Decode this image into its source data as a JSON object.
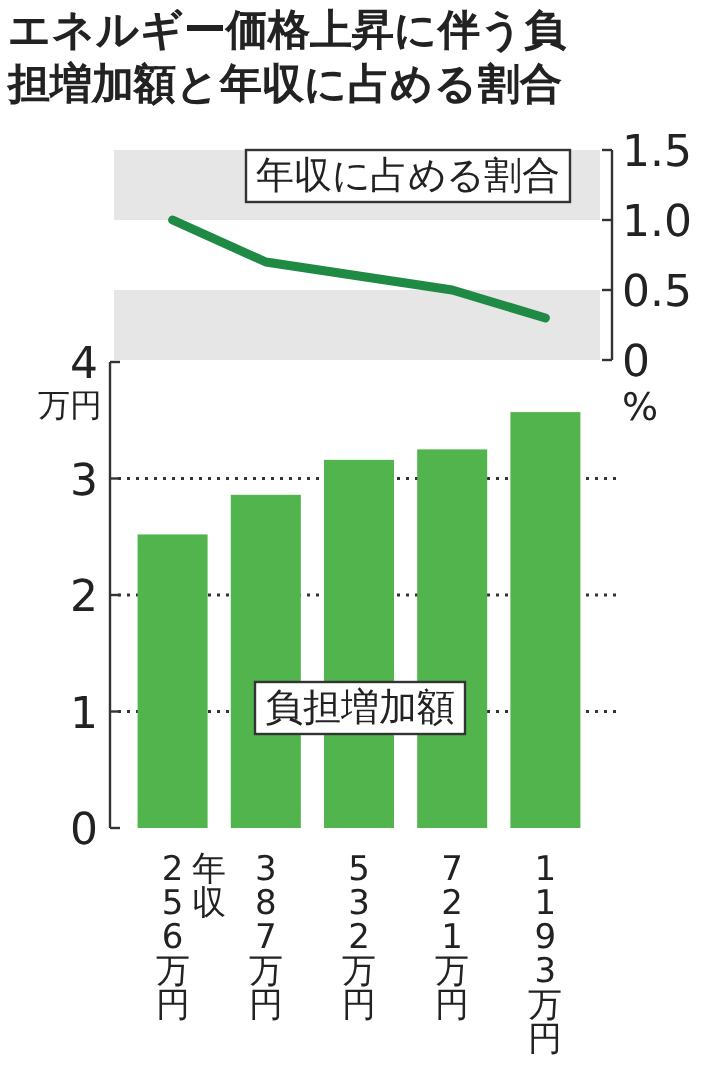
{
  "chart_data": [
    {
      "type": "line",
      "title": "エネルギー価格上昇に伴う負担増加額と年収に占める割合",
      "annotations": [
        "年収に占める割合"
      ],
      "ylabel": "%",
      "categories": [
        "256万円",
        "387万円",
        "532万円",
        "721万円",
        "1193万円"
      ],
      "tick_labels": "y",
      "series": [
        {
          "color": "#1e8a44",
          "values": [
            1.0,
            0.7,
            0.6,
            0.5,
            0.3
          ]
        }
      ],
      "ylim": [
        0,
        1.5
      ],
      "yticks": [
        {
          "value": 0,
          "label": "0"
        },
        {
          "value": 0.5,
          "label": "0.5"
        },
        {
          "value": 1,
          "label": "1.0"
        },
        {
          "value": 1.5,
          "label": "1.5"
        }
      ],
      "bands": [
        {
          "axis": "y",
          "from": 0,
          "to": 0.5,
          "color": "#e6e6e6"
        },
        {
          "axis": "y",
          "from": 1,
          "to": 1.5,
          "color": "#e6e6e6"
        }
      ],
      "marker": "none",
      "line_style": "solid"
    },
    {
      "type": "bar",
      "annotations": [
        "負担増加額"
      ],
      "ylabel": "万円",
      "xlabel": "年収",
      "categories": [
        "256万円",
        "387万円",
        "532万円",
        "721万円",
        "1193万円"
      ],
      "series": [
        {
          "color": "#52b44c",
          "values": [
            2.52,
            2.86,
            3.16,
            3.25,
            3.57
          ]
        }
      ],
      "ylim": [
        0,
        4
      ],
      "yticks": [
        0,
        1,
        2,
        3,
        4
      ],
      "grid": "y"
    }
  ]
}
